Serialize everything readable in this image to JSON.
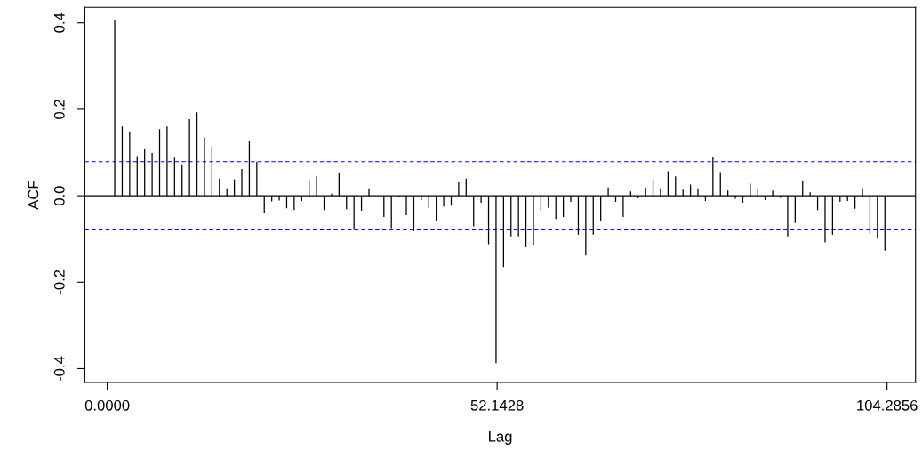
{
  "chart_data": {
    "type": "bar",
    "xlabel": "Lag",
    "ylabel": "ACF",
    "x": [
      1,
      2,
      3,
      4,
      5,
      6,
      7,
      8,
      9,
      10,
      11,
      12,
      13,
      14,
      15,
      16,
      17,
      18,
      19,
      20,
      21,
      22,
      23,
      24,
      25,
      26,
      27,
      28,
      29,
      30,
      31,
      32,
      33,
      34,
      35,
      36,
      37,
      38,
      39,
      40,
      41,
      42,
      43,
      44,
      45,
      46,
      47,
      48,
      49,
      50,
      51,
      52,
      53,
      54,
      55,
      56,
      57,
      58,
      59,
      60,
      61,
      62,
      63,
      64,
      65,
      66,
      67,
      68,
      69,
      70,
      71,
      72,
      73,
      74,
      75,
      76,
      77,
      78,
      79,
      80,
      81,
      82,
      83,
      84,
      85,
      86,
      87,
      88,
      89,
      90,
      91,
      92,
      93,
      94,
      95,
      96,
      97,
      98,
      99,
      100,
      101,
      102,
      103,
      104
    ],
    "values": [
      0.406,
      0.16,
      0.149,
      0.092,
      0.108,
      0.099,
      0.154,
      0.16,
      0.088,
      0.073,
      0.177,
      0.193,
      0.135,
      0.114,
      0.04,
      0.017,
      0.038,
      0.062,
      0.127,
      0.079,
      -0.04,
      -0.013,
      -0.011,
      -0.029,
      -0.033,
      -0.012,
      0.036,
      0.045,
      -0.033,
      0.005,
      0.052,
      -0.031,
      -0.079,
      -0.035,
      0.017,
      0.0,
      -0.049,
      -0.075,
      -0.004,
      -0.045,
      -0.082,
      -0.01,
      -0.028,
      -0.059,
      -0.025,
      -0.023,
      0.031,
      0.04,
      -0.071,
      -0.016,
      -0.112,
      -0.387,
      -0.165,
      -0.094,
      -0.094,
      -0.119,
      -0.115,
      -0.035,
      -0.028,
      -0.054,
      -0.049,
      -0.014,
      -0.09,
      -0.138,
      -0.09,
      -0.058,
      0.019,
      -0.014,
      -0.049,
      0.01,
      -0.006,
      0.019,
      0.038,
      0.017,
      0.057,
      0.045,
      0.014,
      0.026,
      0.017,
      -0.012,
      0.09,
      0.055,
      0.012,
      -0.007,
      -0.016,
      0.028,
      0.017,
      -0.01,
      0.012,
      -0.005,
      -0.094,
      -0.063,
      0.033,
      0.008,
      -0.033,
      -0.108,
      -0.09,
      -0.014,
      -0.012,
      -0.03,
      0.017,
      -0.087,
      -0.099,
      -0.127
    ],
    "color": "#000000",
    "xlim": [
      -3.0,
      108.1
    ],
    "ylim": [
      -0.432,
      0.436
    ],
    "xticks": [
      {
        "value": 0,
        "label": "0.0000"
      },
      {
        "value": 52.1428,
        "label": "52.1428"
      },
      {
        "value": 104.2856,
        "label": "104.2856"
      }
    ],
    "yticks": [
      {
        "value": -0.4,
        "label": "-0.4"
      },
      {
        "value": -0.2,
        "label": "-0.2"
      },
      {
        "value": 0,
        "label": "0.0"
      },
      {
        "value": 0.2,
        "label": "0.2"
      },
      {
        "value": 0.4,
        "label": "0.4"
      }
    ],
    "ref_lines": [
      {
        "axis": "y",
        "value": 0,
        "color": "#000000",
        "line_style": "solid"
      },
      {
        "axis": "y",
        "value": 0.079,
        "color": "#0000ff",
        "line_style": "dashed"
      },
      {
        "axis": "y",
        "value": -0.079,
        "color": "#0000ff",
        "line_style": "dashed"
      }
    ],
    "grid": false,
    "legend": false
  }
}
